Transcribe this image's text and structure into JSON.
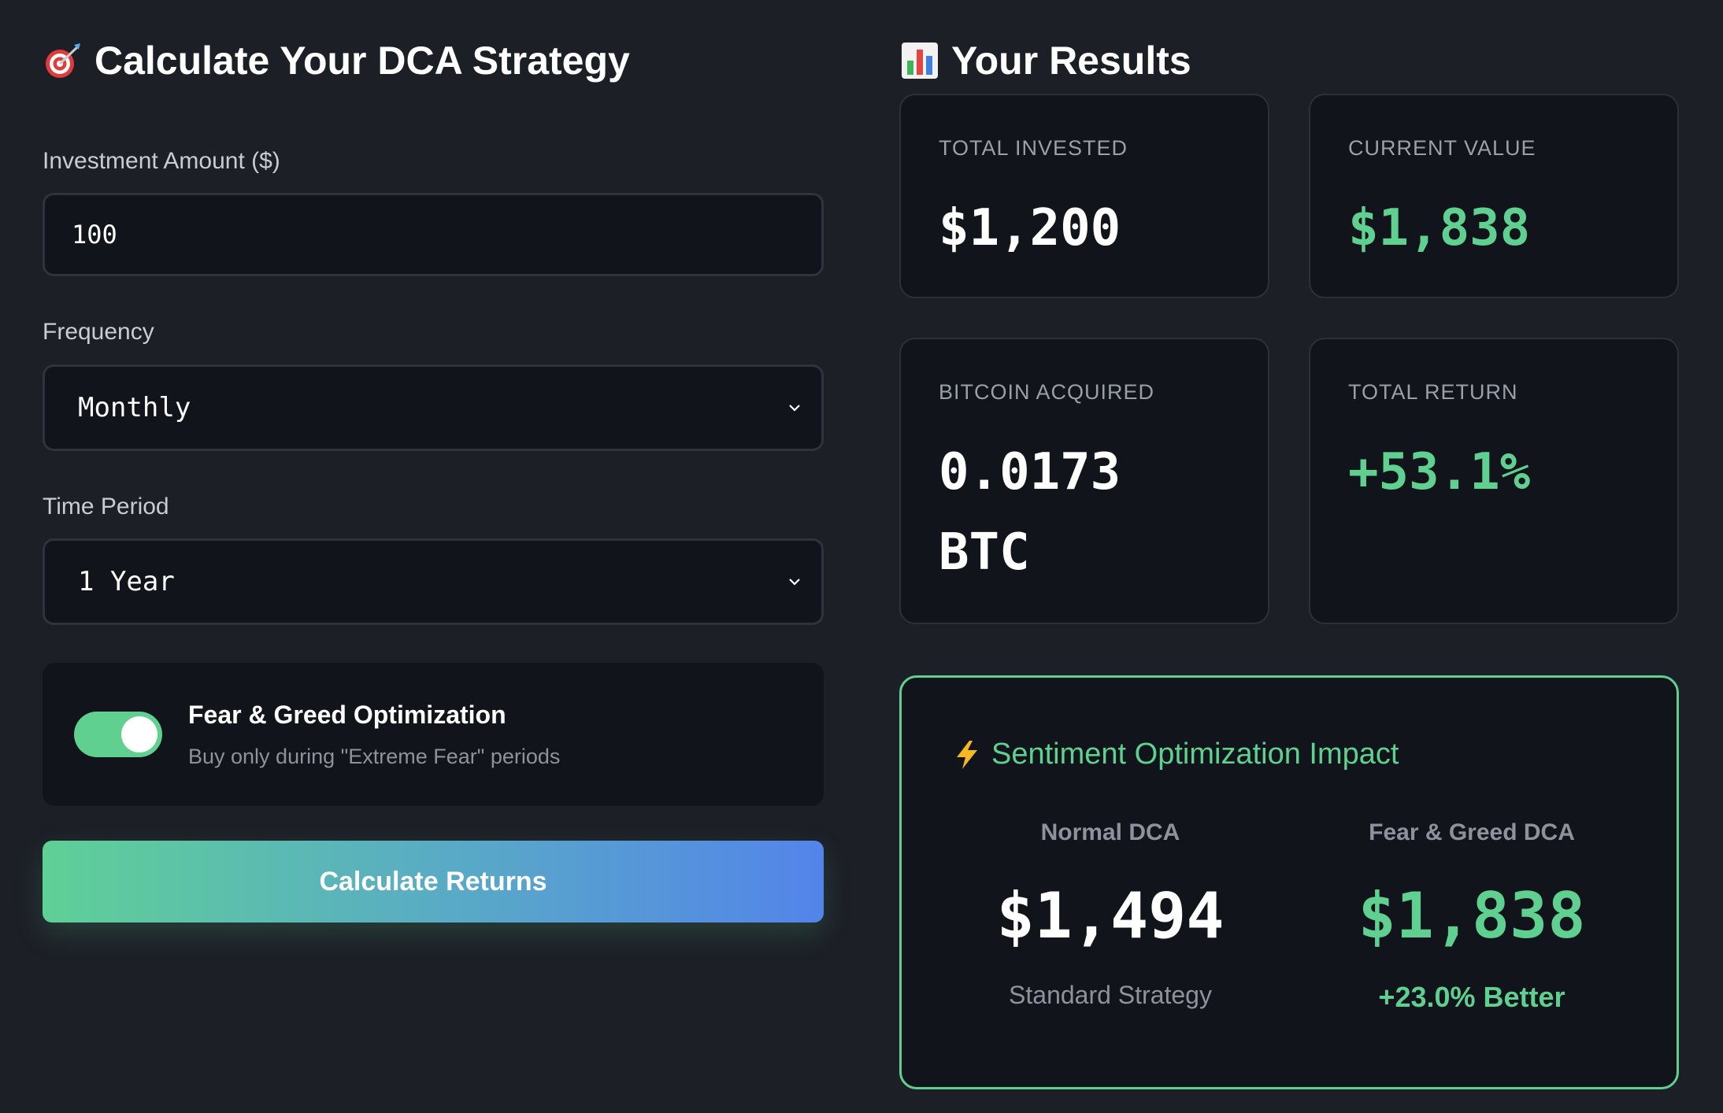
{
  "calculator": {
    "title": "Calculate Your DCA Strategy",
    "title_icon": "target-icon",
    "investment_label": "Investment Amount ($)",
    "investment_value": "100",
    "frequency_label": "Frequency",
    "frequency_value": "Monthly",
    "period_label": "Time Period",
    "period_value": "1 Year",
    "toggle": {
      "title": "Fear & Greed Optimization",
      "subtitle": "Buy only during \"Extreme Fear\" periods",
      "on": true
    },
    "button_label": "Calculate Returns"
  },
  "results": {
    "title": "Your Results",
    "title_icon": "bar-chart-icon",
    "cards": [
      {
        "label": "TOTAL INVESTED",
        "value": "$1,200"
      },
      {
        "label": "CURRENT VALUE",
        "value": "$1,838"
      },
      {
        "label": "BITCOIN ACQUIRED",
        "value": "0.0173 BTC"
      },
      {
        "label": "TOTAL RETURN",
        "value": "+53.1%"
      }
    ]
  },
  "impact": {
    "title": "Sentiment Optimization Impact",
    "icon": "lightning-icon",
    "normal": {
      "heading": "Normal DCA",
      "value": "$1,494",
      "caption": "Standard Strategy"
    },
    "fear_greed": {
      "heading": "Fear & Greed DCA",
      "value": "$1,838",
      "caption": "+23.0% Better"
    }
  },
  "colors": {
    "background": "#1c1f26",
    "card": "#11141a",
    "accent_green": "#5fd08f",
    "accent_blue": "#5384ea"
  }
}
